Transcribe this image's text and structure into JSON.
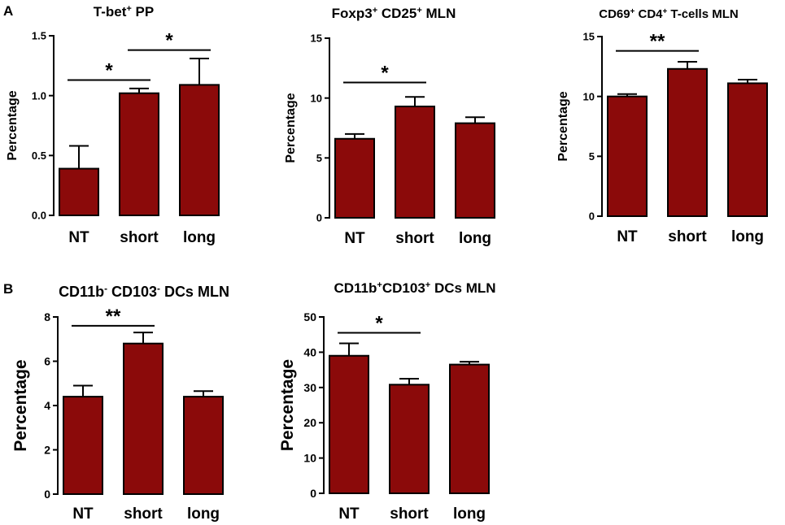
{
  "panels": [
    {
      "letter": "A"
    },
    {
      "letter": "B"
    }
  ],
  "colors": {
    "bar_fill": "#8b0a0a",
    "bar_stroke": "#000000",
    "axis": "#000000"
  },
  "chart_data": [
    {
      "type": "bar",
      "title": {
        "parts": [
          {
            "t": "T-bet"
          },
          {
            "t": "+",
            "sup": true
          },
          {
            "t": " PP"
          }
        ]
      },
      "title_text": "T-bet+ PP",
      "ylabel": "Percentage",
      "categories": [
        "NT",
        "short",
        "long"
      ],
      "values": [
        0.39,
        1.02,
        1.09
      ],
      "errors": [
        0.19,
        0.04,
        0.22
      ],
      "ylim": [
        0,
        1.5
      ],
      "yticks": [
        0,
        0.5,
        1.0,
        1.5
      ],
      "ytick_labels": [
        "0.0",
        "0.5",
        "1.0",
        "1.5"
      ],
      "significance": [
        {
          "from": 0,
          "to": 1,
          "label": "*",
          "y": 1.13
        },
        {
          "from": 1,
          "to": 2,
          "label": "*",
          "y": 1.38
        }
      ]
    },
    {
      "type": "bar",
      "title": {
        "parts": [
          {
            "t": "Foxp3"
          },
          {
            "t": "+",
            "sup": true
          },
          {
            "t": " CD25"
          },
          {
            "t": "+",
            "sup": true
          },
          {
            "t": " MLN"
          }
        ]
      },
      "title_text": "Foxp3+ CD25+ MLN",
      "ylabel": "Percentage",
      "categories": [
        "NT",
        "short",
        "long"
      ],
      "values": [
        6.6,
        9.3,
        7.9
      ],
      "errors": [
        0.4,
        0.8,
        0.5
      ],
      "ylim": [
        0,
        15
      ],
      "yticks": [
        0,
        5,
        10,
        15
      ],
      "ytick_labels": [
        "0",
        "5",
        "10",
        "15"
      ],
      "significance": [
        {
          "from": 0,
          "to": 1,
          "label": "*",
          "y": 11.3
        }
      ]
    },
    {
      "type": "bar",
      "title": {
        "parts": [
          {
            "t": "CD69"
          },
          {
            "t": "+",
            "sup": true
          },
          {
            "t": " CD4"
          },
          {
            "t": "+",
            "sup": true
          },
          {
            "t": " T-cells MLN"
          }
        ]
      },
      "title_text": "CD69+ CD4+ T-cells MLN",
      "ylabel": "Percentage",
      "categories": [
        "NT",
        "short",
        "long"
      ],
      "values": [
        10.0,
        12.3,
        11.1
      ],
      "errors": [
        0.2,
        0.6,
        0.3
      ],
      "ylim": [
        0,
        15
      ],
      "yticks": [
        0,
        5,
        10,
        15
      ],
      "ytick_labels": [
        "0",
        "5",
        "10",
        "15"
      ],
      "significance": [
        {
          "from": 0,
          "to": 1,
          "label": "**",
          "y": 13.8
        }
      ]
    },
    {
      "type": "bar",
      "title": {
        "parts": [
          {
            "t": "CD11b"
          },
          {
            "t": "-",
            "sup": true
          },
          {
            "t": " CD103"
          },
          {
            "t": "-",
            "sup": true
          },
          {
            "t": " DCs MLN"
          }
        ]
      },
      "title_text": "CD11b- CD103- DCs MLN",
      "ylabel": "Percentage",
      "categories": [
        "NT",
        "short",
        "long"
      ],
      "values": [
        4.4,
        6.8,
        4.4
      ],
      "errors": [
        0.5,
        0.5,
        0.25
      ],
      "ylim": [
        0,
        8
      ],
      "yticks": [
        0,
        2,
        4,
        6,
        8
      ],
      "ytick_labels": [
        "0",
        "2",
        "4",
        "6",
        "8"
      ],
      "significance": [
        {
          "from": 0,
          "to": 1,
          "label": "**",
          "y": 7.6
        }
      ]
    },
    {
      "type": "bar",
      "title": {
        "parts": [
          {
            "t": "CD11b"
          },
          {
            "t": "+",
            "sup": true
          },
          {
            "t": "CD103"
          },
          {
            "t": "+",
            "sup": true
          },
          {
            "t": " DCs MLN"
          }
        ]
      },
      "title_text": "CD11b+CD103+ DCs MLN",
      "ylabel": "Percentage",
      "categories": [
        "NT",
        "short",
        "long"
      ],
      "values": [
        39.0,
        30.8,
        36.5
      ],
      "errors": [
        3.5,
        1.7,
        0.8
      ],
      "ylim": [
        0,
        50
      ],
      "yticks": [
        0,
        10,
        20,
        30,
        40,
        50
      ],
      "ytick_labels": [
        "0",
        "10",
        "20",
        "30",
        "40",
        "50"
      ],
      "significance": [
        {
          "from": 0,
          "to": 1,
          "label": "*",
          "y": 45.5
        }
      ]
    }
  ]
}
